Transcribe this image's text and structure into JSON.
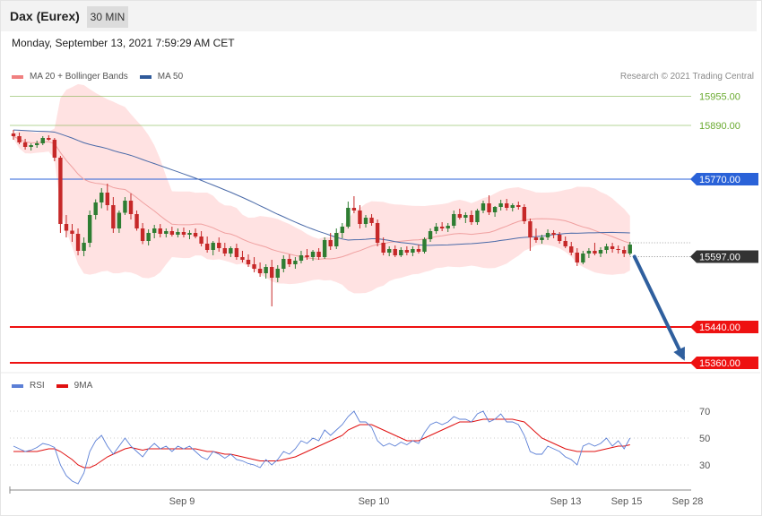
{
  "header": {
    "title": "Dax (Eurex)",
    "timeframe": "30 MIN"
  },
  "timestamp": "Monday, September 13, 2021 7:59:29 AM CET",
  "credit": "Research © 2021 Trading Central",
  "legend_main": [
    {
      "label": "MA 20 + Bollinger Bands",
      "color": "#f08080"
    },
    {
      "label": "MA 50",
      "color": "#2f5a9a"
    }
  ],
  "legend_rsi": [
    {
      "label": "RSI",
      "color": "#5b7fd6"
    },
    {
      "label": "9MA",
      "color": "#e01010"
    }
  ],
  "colors": {
    "up": "#2e7d32",
    "down": "#c62828",
    "band": "#ffe2e2",
    "ma20": "#f0a0a0",
    "ma50": "#4a6aa8",
    "target": "#6aaa30",
    "pivot": "#2a62d8",
    "support": "#ee1111",
    "current": "#333333",
    "arrow": "#2f5f9e"
  },
  "chart_data": {
    "type": "candlestick",
    "x_ticks": [
      "Sep 9",
      "Sep 10",
      "Sep 13",
      "Sep 15",
      "Sep 28"
    ],
    "y_range": [
      15320,
      16020
    ],
    "levels": [
      {
        "value": 15955,
        "label": "15955.00",
        "kind": "target"
      },
      {
        "value": 15890,
        "label": "15890.00",
        "kind": "target"
      },
      {
        "value": 15770,
        "label": "15770.00",
        "kind": "pivot"
      },
      {
        "value": 15597,
        "label": "15597.00",
        "kind": "current"
      },
      {
        "value": 15440,
        "label": "15440.00",
        "kind": "support"
      },
      {
        "value": 15360,
        "label": "15360.00",
        "kind": "support"
      }
    ],
    "forecast": {
      "from": 15597,
      "to": 15360
    },
    "ohlc": [
      [
        15872,
        15880,
        15858,
        15866
      ],
      [
        15866,
        15874,
        15848,
        15852
      ],
      [
        15852,
        15860,
        15836,
        15842
      ],
      [
        15842,
        15850,
        15834,
        15846
      ],
      [
        15846,
        15856,
        15840,
        15850
      ],
      [
        15850,
        15866,
        15846,
        15862
      ],
      [
        15862,
        15868,
        15856,
        15858
      ],
      [
        15858,
        15862,
        15810,
        15818
      ],
      [
        15818,
        15822,
        15650,
        15670
      ],
      [
        15670,
        15690,
        15640,
        15655
      ],
      [
        15655,
        15670,
        15630,
        15648
      ],
      [
        15648,
        15660,
        15600,
        15610
      ],
      [
        15610,
        15640,
        15598,
        15628
      ],
      [
        15628,
        15700,
        15618,
        15690
      ],
      [
        15690,
        15725,
        15680,
        15718
      ],
      [
        15718,
        15750,
        15705,
        15740
      ],
      [
        15740,
        15760,
        15700,
        15712
      ],
      [
        15712,
        15730,
        15650,
        15660
      ],
      [
        15660,
        15700,
        15650,
        15695
      ],
      [
        15695,
        15730,
        15690,
        15722
      ],
      [
        15722,
        15738,
        15680,
        15692
      ],
      [
        15692,
        15700,
        15655,
        15660
      ],
      [
        15660,
        15672,
        15625,
        15632
      ],
      [
        15632,
        15658,
        15622,
        15650
      ],
      [
        15650,
        15668,
        15638,
        15660
      ],
      [
        15660,
        15670,
        15640,
        15648
      ],
      [
        15648,
        15660,
        15640,
        15654
      ],
      [
        15654,
        15664,
        15642,
        15646
      ],
      [
        15646,
        15660,
        15640,
        15652
      ],
      [
        15652,
        15662,
        15640,
        15646
      ],
      [
        15646,
        15656,
        15636,
        15650
      ],
      [
        15650,
        15660,
        15638,
        15642
      ],
      [
        15642,
        15654,
        15620,
        15626
      ],
      [
        15626,
        15642,
        15606,
        15612
      ],
      [
        15612,
        15632,
        15600,
        15628
      ],
      [
        15628,
        15640,
        15608,
        15616
      ],
      [
        15616,
        15628,
        15598,
        15604
      ],
      [
        15604,
        15620,
        15596,
        15616
      ],
      [
        15616,
        15626,
        15590,
        15596
      ],
      [
        15596,
        15610,
        15584,
        15590
      ],
      [
        15590,
        15602,
        15574,
        15580
      ],
      [
        15580,
        15596,
        15562,
        15570
      ],
      [
        15570,
        15584,
        15552,
        15560
      ],
      [
        15560,
        15580,
        15548,
        15574
      ],
      [
        15574,
        15590,
        15486,
        15550
      ],
      [
        15550,
        15578,
        15540,
        15570
      ],
      [
        15570,
        15600,
        15562,
        15592
      ],
      [
        15592,
        15602,
        15574,
        15580
      ],
      [
        15580,
        15596,
        15570,
        15588
      ],
      [
        15588,
        15610,
        15582,
        15600
      ],
      [
        15600,
        15614,
        15590,
        15596
      ],
      [
        15596,
        15612,
        15588,
        15608
      ],
      [
        15608,
        15616,
        15590,
        15596
      ],
      [
        15596,
        15640,
        15592,
        15634
      ],
      [
        15634,
        15650,
        15612,
        15620
      ],
      [
        15620,
        15660,
        15614,
        15650
      ],
      [
        15650,
        15672,
        15638,
        15664
      ],
      [
        15664,
        15720,
        15660,
        15706
      ],
      [
        15706,
        15732,
        15694,
        15700
      ],
      [
        15700,
        15712,
        15660,
        15670
      ],
      [
        15670,
        15690,
        15662,
        15684
      ],
      [
        15684,
        15692,
        15666,
        15672
      ],
      [
        15672,
        15680,
        15620,
        15628
      ],
      [
        15628,
        15640,
        15600,
        15606
      ],
      [
        15606,
        15620,
        15598,
        15614
      ],
      [
        15614,
        15622,
        15596,
        15600
      ],
      [
        15600,
        15618,
        15596,
        15612
      ],
      [
        15612,
        15620,
        15600,
        15606
      ],
      [
        15606,
        15620,
        15598,
        15614
      ],
      [
        15614,
        15624,
        15604,
        15608
      ],
      [
        15608,
        15640,
        15604,
        15636
      ],
      [
        15636,
        15660,
        15630,
        15654
      ],
      [
        15654,
        15672,
        15648,
        15664
      ],
      [
        15664,
        15674,
        15654,
        15660
      ],
      [
        15660,
        15672,
        15652,
        15666
      ],
      [
        15666,
        15700,
        15660,
        15692
      ],
      [
        15692,
        15704,
        15680,
        15684
      ],
      [
        15684,
        15696,
        15672,
        15690
      ],
      [
        15690,
        15700,
        15668,
        15674
      ],
      [
        15674,
        15704,
        15668,
        15700
      ],
      [
        15700,
        15722,
        15694,
        15716
      ],
      [
        15716,
        15734,
        15690,
        15696
      ],
      [
        15696,
        15710,
        15686,
        15708
      ],
      [
        15708,
        15724,
        15700,
        15716
      ],
      [
        15716,
        15726,
        15700,
        15706
      ],
      [
        15706,
        15716,
        15698,
        15712
      ],
      [
        15712,
        15720,
        15702,
        15708
      ],
      [
        15708,
        15714,
        15670,
        15676
      ],
      [
        15676,
        15682,
        15610,
        15640
      ],
      [
        15640,
        15660,
        15628,
        15634
      ],
      [
        15634,
        15646,
        15626,
        15640
      ],
      [
        15640,
        15658,
        15634,
        15650
      ],
      [
        15650,
        15656,
        15638,
        15646
      ],
      [
        15646,
        15652,
        15626,
        15632
      ],
      [
        15632,
        15642,
        15616,
        15620
      ],
      [
        15620,
        15630,
        15600,
        15606
      ],
      [
        15606,
        15616,
        15576,
        15584
      ],
      [
        15584,
        15610,
        15580,
        15604
      ],
      [
        15604,
        15616,
        15594,
        15610
      ],
      [
        15610,
        15628,
        15600,
        15604
      ],
      [
        15604,
        15618,
        15596,
        15612
      ],
      [
        15612,
        15626,
        15604,
        15620
      ],
      [
        15620,
        15628,
        15606,
        15614
      ],
      [
        15614,
        15622,
        15604,
        15612
      ],
      [
        15612,
        15620,
        15596,
        15604
      ],
      [
        15604,
        15630,
        15600,
        15624
      ]
    ],
    "rsi": {
      "levels": [
        70,
        50,
        30
      ],
      "range": [
        10,
        84
      ],
      "rsi": [
        44,
        42,
        40,
        41,
        43,
        46,
        45,
        43,
        30,
        22,
        18,
        16,
        24,
        40,
        48,
        52,
        44,
        38,
        44,
        50,
        44,
        40,
        36,
        42,
        46,
        42,
        44,
        40,
        44,
        42,
        44,
        40,
        36,
        34,
        40,
        38,
        35,
        38,
        34,
        33,
        31,
        30,
        28,
        34,
        30,
        34,
        40,
        38,
        42,
        48,
        46,
        50,
        48,
        56,
        52,
        56,
        60,
        66,
        70,
        62,
        62,
        58,
        48,
        44,
        46,
        44,
        47,
        45,
        48,
        46,
        54,
        60,
        62,
        60,
        62,
        66,
        64,
        64,
        62,
        68,
        70,
        62,
        64,
        68,
        62,
        62,
        60,
        52,
        40,
        38,
        38,
        44,
        42,
        40,
        36,
        34,
        30,
        44,
        46,
        44,
        46,
        50,
        44,
        48,
        42,
        50
      ],
      "ma9": [
        40,
        40,
        40,
        40,
        40,
        41,
        42,
        42,
        40,
        37,
        34,
        30,
        28,
        28,
        30,
        33,
        36,
        38,
        40,
        42,
        43,
        42,
        41,
        42,
        42,
        42,
        42,
        42,
        42,
        42,
        42,
        42,
        41,
        40,
        40,
        39,
        38,
        38,
        37,
        36,
        35,
        34,
        33,
        33,
        33,
        33,
        34,
        35,
        36,
        38,
        40,
        42,
        44,
        46,
        48,
        50,
        52,
        56,
        58,
        60,
        60,
        60,
        58,
        56,
        54,
        52,
        50,
        48,
        48,
        48,
        50,
        52,
        54,
        56,
        58,
        60,
        62,
        62,
        62,
        63,
        64,
        64,
        64,
        64,
        64,
        64,
        63,
        62,
        58,
        54,
        50,
        48,
        46,
        44,
        42,
        41,
        40,
        40,
        40,
        40,
        41,
        42,
        43,
        44,
        44,
        45
      ]
    }
  }
}
